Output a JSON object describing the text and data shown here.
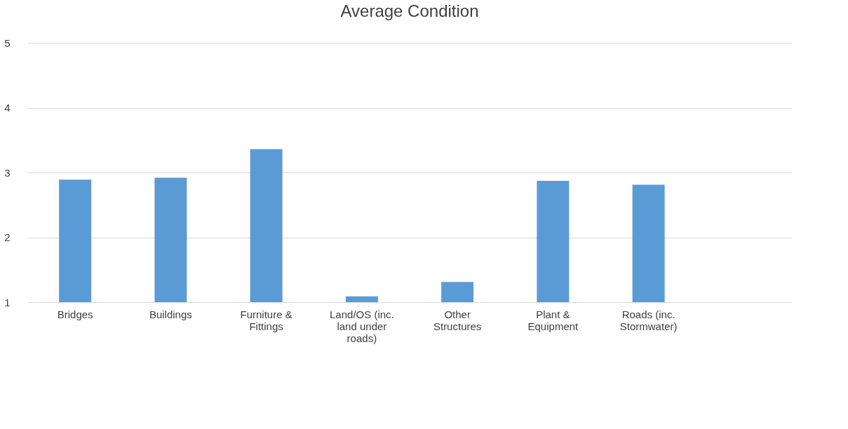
{
  "chart_data": {
    "type": "bar",
    "title": "Average Condition",
    "categories": [
      "Bridges",
      "Buildings",
      "Furniture & Fittings",
      "Land/OS (inc. land under roads)",
      "Other Structures",
      "Plant & Equipment",
      "Roads (inc. Stormwater)",
      null
    ],
    "values": [
      2.89,
      2.92,
      3.36,
      1.09,
      1.31,
      2.87,
      2.81,
      null
    ],
    "color": "#5b9bd5",
    "ylim": [
      1,
      5
    ],
    "yticks": [
      1,
      2,
      3,
      4,
      5
    ],
    "grid": "y"
  }
}
